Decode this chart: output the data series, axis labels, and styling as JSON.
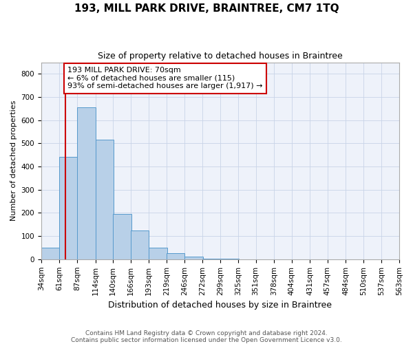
{
  "title": "193, MILL PARK DRIVE, BRAINTREE, CM7 1TQ",
  "subtitle": "Size of property relative to detached houses in Braintree",
  "xlabel": "Distribution of detached houses by size in Braintree",
  "ylabel": "Number of detached properties",
  "bar_color": "#b8d0e8",
  "bar_edge_color": "#5599cc",
  "background_color": "#eef2fa",
  "grid_color": "#c8d4e8",
  "annotation_box_color": "#cc0000",
  "property_line_color": "#cc0000",
  "property_value": 70,
  "annotation_text": "193 MILL PARK DRIVE: 70sqm\n← 6% of detached houses are smaller (115)\n93% of semi-detached houses are larger (1,917) →",
  "footer_text": "Contains HM Land Registry data © Crown copyright and database right 2024.\nContains public sector information licensed under the Open Government Licence v3.0.",
  "bins": [
    34,
    61,
    87,
    114,
    140,
    166,
    193,
    219,
    246,
    272,
    299,
    325,
    351,
    378,
    404,
    431,
    457,
    484,
    510,
    537,
    563
  ],
  "bin_labels": [
    "34sqm",
    "61sqm",
    "87sqm",
    "114sqm",
    "140sqm",
    "166sqm",
    "193sqm",
    "219sqm",
    "246sqm",
    "272sqm",
    "299sqm",
    "325sqm",
    "351sqm",
    "378sqm",
    "404sqm",
    "431sqm",
    "457sqm",
    "484sqm",
    "510sqm",
    "537sqm",
    "563sqm"
  ],
  "values": [
    50,
    443,
    655,
    515,
    195,
    125,
    50,
    27,
    10,
    2,
    1,
    0,
    0,
    0,
    0,
    0,
    0,
    0,
    0,
    0
  ],
  "ylim": [
    0,
    850
  ],
  "yticks": [
    0,
    100,
    200,
    300,
    400,
    500,
    600,
    700,
    800
  ],
  "title_fontsize": 11,
  "subtitle_fontsize": 9,
  "xlabel_fontsize": 9,
  "ylabel_fontsize": 8,
  "tick_fontsize": 7.5,
  "footer_fontsize": 6.5,
  "ann_fontsize": 8
}
